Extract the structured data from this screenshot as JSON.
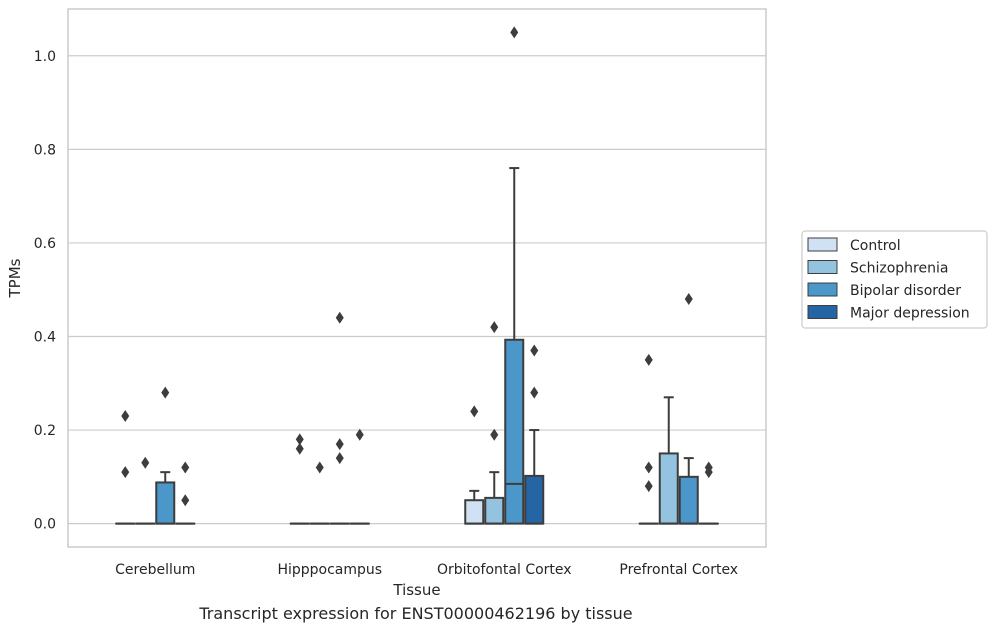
{
  "caption": "Transcript expression for ENST00000462196 by tissue",
  "chart_data": {
    "type": "box",
    "xlabel": "Tissue",
    "ylabel": "TPMs",
    "ylim": [
      -0.05,
      1.1
    ],
    "yticks": [
      0.0,
      0.2,
      0.4,
      0.6,
      0.8,
      1.0
    ],
    "ytick_labels": [
      "0.0",
      "0.2",
      "0.4",
      "0.6",
      "0.8",
      "1.0"
    ],
    "grid": "horizontal",
    "legend_placement": "right",
    "categories": [
      "Cerebellum",
      "Hipppocampus",
      "Orbitofontal Cortex",
      "Prefrontal Cortex"
    ],
    "series": [
      {
        "name": "Control",
        "color": "#cfe1f2",
        "boxes": [
          {
            "min": 0,
            "q1": 0,
            "median": 0,
            "q3": 0,
            "max": 0,
            "outliers": [
              0.23,
              0.11
            ]
          },
          {
            "min": 0,
            "q1": 0,
            "median": 0,
            "q3": 0,
            "max": 0,
            "outliers": [
              0.18,
              0.16
            ]
          },
          {
            "min": 0,
            "q1": 0,
            "median": 0,
            "q3": 0.05,
            "max": 0.07,
            "outliers": [
              0.24
            ]
          },
          {
            "min": 0,
            "q1": 0,
            "median": 0,
            "q3": 0,
            "max": 0,
            "outliers": [
              0.35,
              0.12,
              0.08
            ]
          }
        ]
      },
      {
        "name": "Schizophrenia",
        "color": "#93c3df",
        "boxes": [
          {
            "min": 0,
            "q1": 0,
            "median": 0,
            "q3": 0,
            "max": 0,
            "outliers": [
              0.13
            ]
          },
          {
            "min": 0,
            "q1": 0,
            "median": 0,
            "q3": 0,
            "max": 0,
            "outliers": [
              0.12
            ]
          },
          {
            "min": 0,
            "q1": 0,
            "median": 0,
            "q3": 0.055,
            "max": 0.11,
            "outliers": [
              0.42,
              0.19
            ]
          },
          {
            "min": 0,
            "q1": 0,
            "median": 0,
            "q3": 0.15,
            "max": 0.27,
            "outliers": []
          }
        ]
      },
      {
        "name": "Bipolar disorder",
        "color": "#4b97c9",
        "boxes": [
          {
            "min": 0,
            "q1": 0,
            "median": 0,
            "q3": 0.088,
            "max": 0.11,
            "outliers": [
              0.28
            ]
          },
          {
            "min": 0,
            "q1": 0,
            "median": 0,
            "q3": 0,
            "max": 0,
            "outliers": [
              0.44,
              0.17,
              0.14
            ]
          },
          {
            "min": 0,
            "q1": 0,
            "median": 0.085,
            "q3": 0.393,
            "max": 0.76,
            "outliers": [
              1.05
            ]
          },
          {
            "min": 0,
            "q1": 0,
            "median": 0,
            "q3": 0.1,
            "max": 0.14,
            "outliers": [
              0.48
            ]
          }
        ]
      },
      {
        "name": "Major depression",
        "color": "#2565a6",
        "boxes": [
          {
            "min": 0,
            "q1": 0,
            "median": 0,
            "q3": 0,
            "max": 0,
            "outliers": [
              0.12,
              0.05
            ]
          },
          {
            "min": 0,
            "q1": 0,
            "median": 0,
            "q3": 0,
            "max": 0,
            "outliers": [
              0.19
            ]
          },
          {
            "min": 0,
            "q1": 0,
            "median": 0,
            "q3": 0.102,
            "max": 0.2,
            "outliers": [
              0.37,
              0.28
            ]
          },
          {
            "min": 0,
            "q1": 0,
            "median": 0,
            "q3": 0,
            "max": 0,
            "outliers": [
              0.12,
              0.11
            ]
          }
        ]
      }
    ]
  }
}
